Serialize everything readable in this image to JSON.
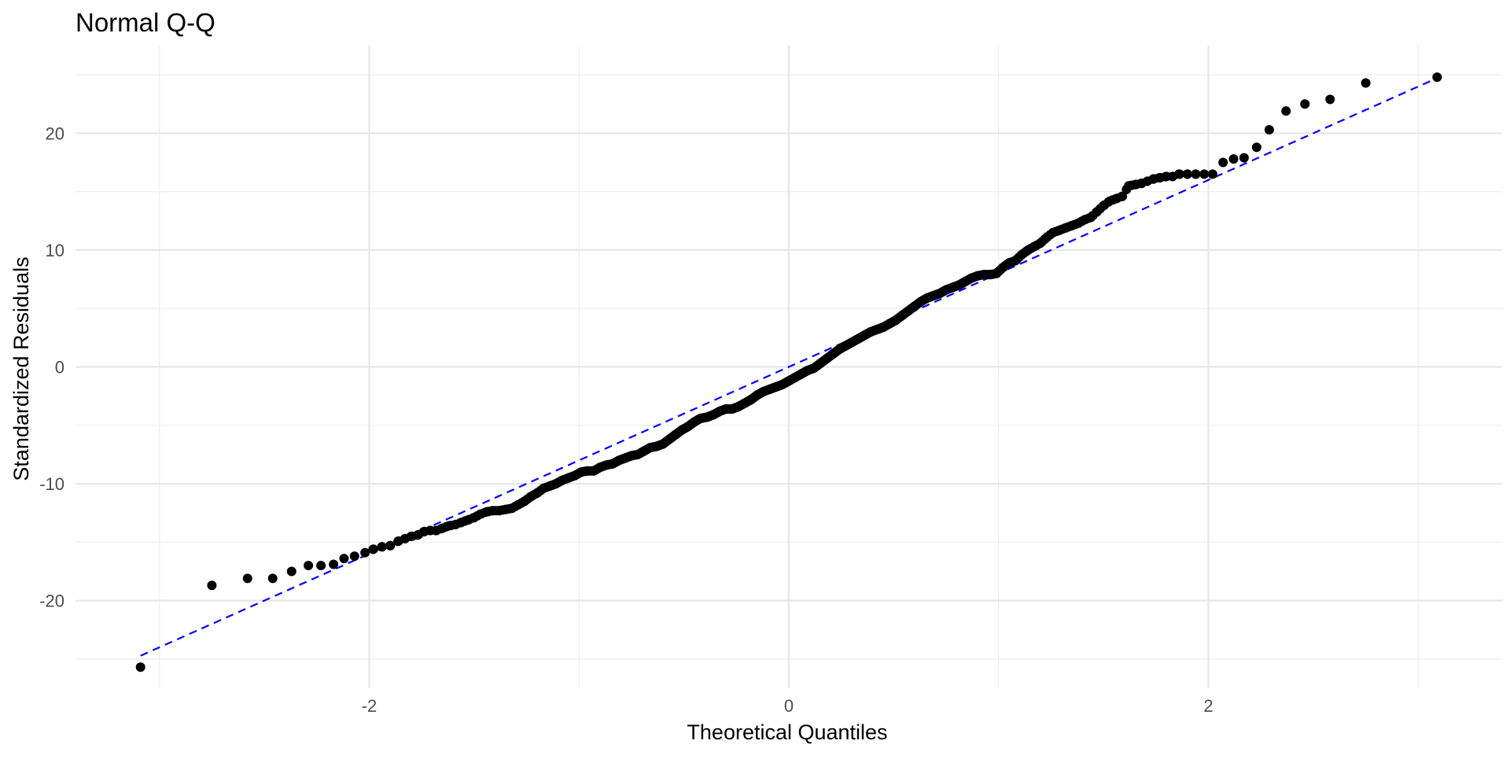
{
  "chart_data": {
    "type": "scatter",
    "title": "Normal Q-Q",
    "xlabel": "Theoretical Quantiles",
    "ylabel": "Standardized Residuals",
    "xlim": [
      -3.4,
      3.4
    ],
    "ylim": [
      -27.5,
      27.5
    ],
    "x_ticks": [
      -2,
      0,
      2
    ],
    "x_tick_labels": [
      "-2",
      "0",
      "2"
    ],
    "x_minor_ticks": [
      -3,
      -1,
      1,
      3
    ],
    "y_ticks": [
      -20,
      -10,
      0,
      10,
      20
    ],
    "y_tick_labels": [
      "-20",
      "-10",
      "0",
      "10",
      "20"
    ],
    "y_minor_ticks": [
      -25,
      -15,
      -5,
      5,
      15,
      25
    ],
    "grid": true,
    "n_points": 400,
    "reference_line": {
      "slope": 8.0,
      "intercept": 0.0,
      "x_range": [
        -3.09,
        3.09
      ],
      "style": "dashed",
      "color": "#0000ff"
    },
    "point_color": "#000000",
    "points": [
      {
        "x": -3.09,
        "y": -25.7
      },
      {
        "x": -2.75,
        "y": -18.7
      },
      {
        "x": -2.58,
        "y": -18.1
      },
      {
        "x": -2.46,
        "y": -18.1
      },
      {
        "x": -2.37,
        "y": -17.5
      },
      {
        "x": -2.29,
        "y": -17.0
      },
      {
        "x": -2.23,
        "y": -17.0
      },
      {
        "x": -2.17,
        "y": -16.9
      },
      {
        "x": -2.12,
        "y": -16.4
      },
      {
        "x": -2.07,
        "y": -16.2
      },
      {
        "x": -2.02,
        "y": -15.9
      },
      {
        "x": -1.98,
        "y": -15.6
      },
      {
        "x": -1.94,
        "y": -15.4
      },
      {
        "x": -1.9,
        "y": -15.3
      },
      {
        "x": -1.86,
        "y": -14.9
      },
      {
        "x": -1.83,
        "y": -14.7
      },
      {
        "x": -1.8,
        "y": -14.5
      },
      {
        "x": -1.77,
        "y": -14.4
      },
      {
        "x": -1.74,
        "y": -14.1
      },
      {
        "x": -1.71,
        "y": -14.0
      },
      {
        "x": -1.68,
        "y": -14.0
      },
      {
        "x": -1.65,
        "y": -13.8
      },
      {
        "x": -1.62,
        "y": -13.6
      },
      {
        "x": -1.59,
        "y": -13.5
      },
      {
        "x": -1.56,
        "y": -13.3
      },
      {
        "x": -1.53,
        "y": -13.1
      },
      {
        "x": -1.5,
        "y": -12.9
      },
      {
        "x": -1.47,
        "y": -12.6
      },
      {
        "x": -1.44,
        "y": -12.4
      },
      {
        "x": -1.41,
        "y": -12.3
      },
      {
        "x": -1.38,
        "y": -12.3
      },
      {
        "x": -1.35,
        "y": -12.2
      },
      {
        "x": -1.32,
        "y": -12.1
      },
      {
        "x": -1.29,
        "y": -11.8
      },
      {
        "x": -1.26,
        "y": -11.5
      },
      {
        "x": -1.23,
        "y": -11.1
      },
      {
        "x": -1.2,
        "y": -10.8
      },
      {
        "x": -1.17,
        "y": -10.4
      },
      {
        "x": -1.14,
        "y": -10.2
      },
      {
        "x": -1.11,
        "y": -10.0
      },
      {
        "x": -1.08,
        "y": -9.7
      },
      {
        "x": -1.05,
        "y": -9.5
      },
      {
        "x": -1.02,
        "y": -9.3
      },
      {
        "x": -0.99,
        "y": -9.0
      },
      {
        "x": -0.96,
        "y": -8.9
      },
      {
        "x": -0.93,
        "y": -8.9
      },
      {
        "x": -0.9,
        "y": -8.6
      },
      {
        "x": -0.87,
        "y": -8.4
      },
      {
        "x": -0.84,
        "y": -8.3
      },
      {
        "x": -0.81,
        "y": -8.0
      },
      {
        "x": -0.78,
        "y": -7.8
      },
      {
        "x": -0.75,
        "y": -7.6
      },
      {
        "x": -0.72,
        "y": -7.5
      },
      {
        "x": -0.69,
        "y": -7.2
      },
      {
        "x": -0.66,
        "y": -6.9
      },
      {
        "x": -0.63,
        "y": -6.8
      },
      {
        "x": -0.6,
        "y": -6.6
      },
      {
        "x": -0.57,
        "y": -6.2
      },
      {
        "x": -0.54,
        "y": -5.8
      },
      {
        "x": -0.51,
        "y": -5.4
      },
      {
        "x": -0.48,
        "y": -5.1
      },
      {
        "x": -0.45,
        "y": -4.7
      },
      {
        "x": -0.42,
        "y": -4.4
      },
      {
        "x": -0.39,
        "y": -4.3
      },
      {
        "x": -0.36,
        "y": -4.1
      },
      {
        "x": -0.33,
        "y": -3.8
      },
      {
        "x": -0.3,
        "y": -3.6
      },
      {
        "x": -0.27,
        "y": -3.6
      },
      {
        "x": -0.24,
        "y": -3.4
      },
      {
        "x": -0.21,
        "y": -3.1
      },
      {
        "x": -0.18,
        "y": -2.8
      },
      {
        "x": -0.15,
        "y": -2.4
      },
      {
        "x": -0.12,
        "y": -2.1
      },
      {
        "x": -0.09,
        "y": -1.9
      },
      {
        "x": -0.06,
        "y": -1.7
      },
      {
        "x": -0.03,
        "y": -1.5
      },
      {
        "x": 0.0,
        "y": -1.2
      },
      {
        "x": 0.03,
        "y": -0.9
      },
      {
        "x": 0.06,
        "y": -0.6
      },
      {
        "x": 0.09,
        "y": -0.3
      },
      {
        "x": 0.12,
        "y": -0.1
      },
      {
        "x": 0.15,
        "y": 0.3
      },
      {
        "x": 0.18,
        "y": 0.7
      },
      {
        "x": 0.21,
        "y": 1.1
      },
      {
        "x": 0.24,
        "y": 1.5
      },
      {
        "x": 0.27,
        "y": 1.8
      },
      {
        "x": 0.3,
        "y": 2.1
      },
      {
        "x": 0.33,
        "y": 2.4
      },
      {
        "x": 0.36,
        "y": 2.7
      },
      {
        "x": 0.39,
        "y": 3.0
      },
      {
        "x": 0.42,
        "y": 3.2
      },
      {
        "x": 0.45,
        "y": 3.4
      },
      {
        "x": 0.48,
        "y": 3.7
      },
      {
        "x": 0.51,
        "y": 4.0
      },
      {
        "x": 0.54,
        "y": 4.4
      },
      {
        "x": 0.57,
        "y": 4.8
      },
      {
        "x": 0.6,
        "y": 5.2
      },
      {
        "x": 0.63,
        "y": 5.6
      },
      {
        "x": 0.66,
        "y": 5.9
      },
      {
        "x": 0.69,
        "y": 6.1
      },
      {
        "x": 0.72,
        "y": 6.3
      },
      {
        "x": 0.75,
        "y": 6.6
      },
      {
        "x": 0.78,
        "y": 6.8
      },
      {
        "x": 0.81,
        "y": 7.0
      },
      {
        "x": 0.84,
        "y": 7.3
      },
      {
        "x": 0.87,
        "y": 7.6
      },
      {
        "x": 0.9,
        "y": 7.8
      },
      {
        "x": 0.93,
        "y": 7.9
      },
      {
        "x": 0.96,
        "y": 7.9
      },
      {
        "x": 0.99,
        "y": 8.0
      },
      {
        "x": 1.02,
        "y": 8.5
      },
      {
        "x": 1.05,
        "y": 8.9
      },
      {
        "x": 1.08,
        "y": 9.1
      },
      {
        "x": 1.11,
        "y": 9.6
      },
      {
        "x": 1.14,
        "y": 10.0
      },
      {
        "x": 1.17,
        "y": 10.3
      },
      {
        "x": 1.2,
        "y": 10.6
      },
      {
        "x": 1.23,
        "y": 11.1
      },
      {
        "x": 1.26,
        "y": 11.5
      },
      {
        "x": 1.29,
        "y": 11.7
      },
      {
        "x": 1.32,
        "y": 11.9
      },
      {
        "x": 1.35,
        "y": 12.1
      },
      {
        "x": 1.38,
        "y": 12.3
      },
      {
        "x": 1.41,
        "y": 12.6
      },
      {
        "x": 1.44,
        "y": 12.8
      },
      {
        "x": 1.47,
        "y": 13.3
      },
      {
        "x": 1.5,
        "y": 13.8
      },
      {
        "x": 1.53,
        "y": 14.2
      },
      {
        "x": 1.56,
        "y": 14.4
      },
      {
        "x": 1.59,
        "y": 14.6
      },
      {
        "x": 1.62,
        "y": 15.5
      },
      {
        "x": 1.65,
        "y": 15.6
      },
      {
        "x": 1.68,
        "y": 15.7
      },
      {
        "x": 1.71,
        "y": 15.9
      },
      {
        "x": 1.74,
        "y": 16.1
      },
      {
        "x": 1.77,
        "y": 16.2
      },
      {
        "x": 1.8,
        "y": 16.3
      },
      {
        "x": 1.83,
        "y": 16.3
      },
      {
        "x": 1.86,
        "y": 16.5
      },
      {
        "x": 1.9,
        "y": 16.5
      },
      {
        "x": 1.94,
        "y": 16.5
      },
      {
        "x": 1.98,
        "y": 16.5
      },
      {
        "x": 2.02,
        "y": 16.5
      },
      {
        "x": 2.07,
        "y": 17.5
      },
      {
        "x": 2.12,
        "y": 17.8
      },
      {
        "x": 2.17,
        "y": 17.9
      },
      {
        "x": 2.23,
        "y": 18.8
      },
      {
        "x": 2.29,
        "y": 20.3
      },
      {
        "x": 2.37,
        "y": 21.9
      },
      {
        "x": 2.46,
        "y": 22.5
      },
      {
        "x": 2.58,
        "y": 22.9
      },
      {
        "x": 2.75,
        "y": 24.3
      },
      {
        "x": 3.09,
        "y": 24.8
      }
    ]
  }
}
